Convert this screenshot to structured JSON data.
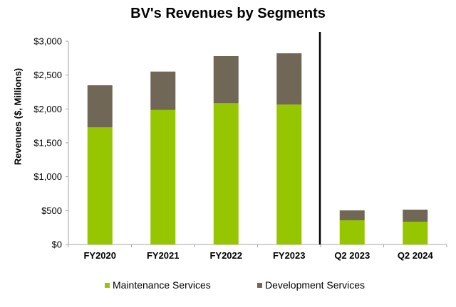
{
  "chart_data": {
    "type": "bar",
    "stacked": true,
    "title": "BV's Revenues by Segments",
    "xlabel": "",
    "ylabel": "Revenues ($, Millions)",
    "ylim": [
      0,
      3000
    ],
    "yticks": [
      0,
      500,
      1000,
      1500,
      2000,
      2500,
      3000
    ],
    "ytick_labels": [
      "$0",
      "$500",
      "$1,000",
      "$1,500",
      "$2,000",
      "$2,500",
      "$3,000"
    ],
    "categories": [
      "FY2020",
      "FY2021",
      "FY2022",
      "FY2023",
      "Q2 2023",
      "Q2 2024"
    ],
    "series": [
      {
        "name": "Maintenance Services",
        "color": "#95C600",
        "values": [
          1728,
          1985,
          2084,
          2066,
          357,
          336
        ]
      },
      {
        "name": "Development Services",
        "color": "#716757",
        "values": [
          622,
          567,
          696,
          756,
          146,
          178
        ]
      }
    ],
    "totals": [
      2350,
      2552,
      2780,
      2822,
      503,
      514
    ],
    "grid": false,
    "legend_position": "bottom",
    "annotations": [
      {
        "type": "vertical-divider",
        "between": [
          "FY2023",
          "Q2 2023"
        ],
        "color": "#000000"
      }
    ]
  },
  "legend": [
    {
      "label": "Maintenance Services",
      "color": "#95C600"
    },
    {
      "label": "Development Services",
      "color": "#716757"
    }
  ]
}
